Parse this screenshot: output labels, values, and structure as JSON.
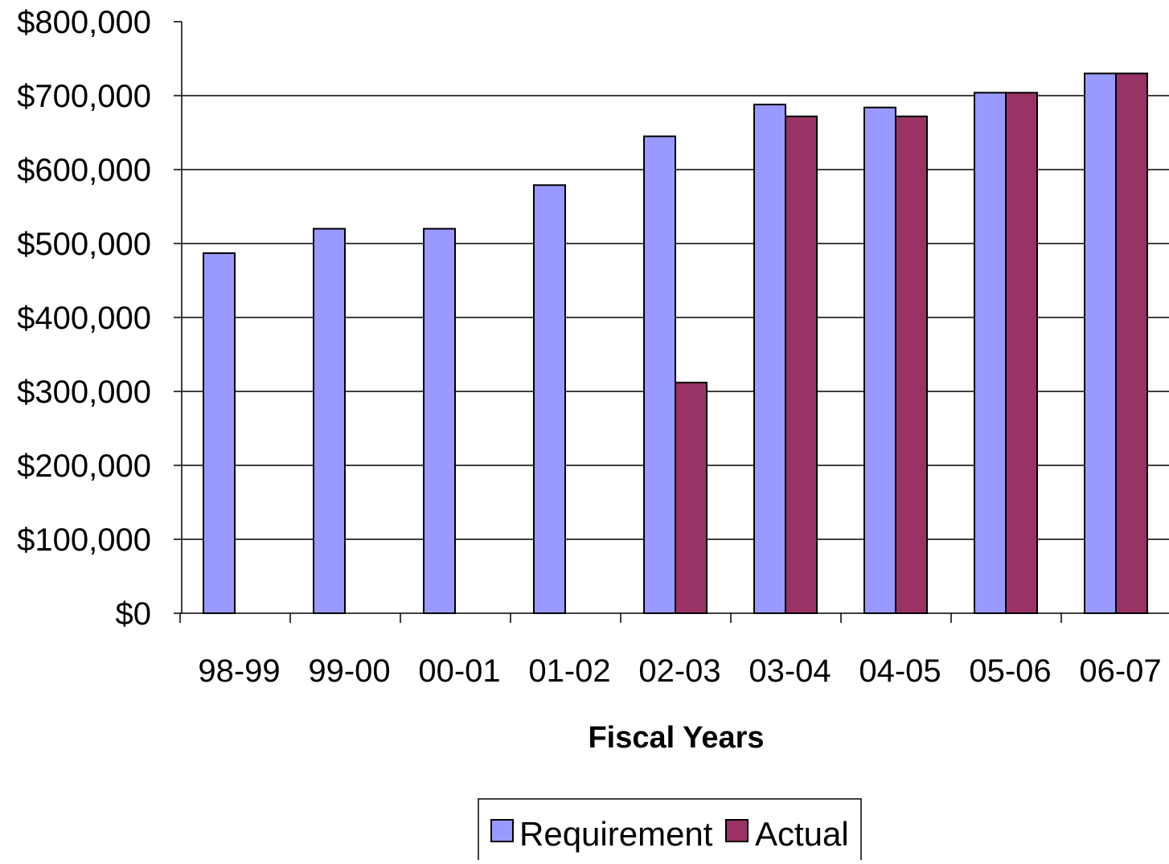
{
  "chart_data": {
    "type": "bar",
    "title": "",
    "xlabel": "Fiscal Years",
    "ylabel": "",
    "categories": [
      "98-99",
      "99-00",
      "00-01",
      "01-02",
      "02-03",
      "03-04",
      "04-05",
      "05-06",
      "06-07"
    ],
    "series": [
      {
        "name": "Requirement",
        "color": "#9999ff",
        "values": [
          487000,
          520000,
          520000,
          579000,
          645000,
          688000,
          684000,
          704000,
          730000
        ]
      },
      {
        "name": "Actual",
        "color": "#993366",
        "values": [
          null,
          null,
          null,
          null,
          312000,
          672000,
          672000,
          704000,
          730000
        ]
      }
    ],
    "ylim": [
      0,
      800000
    ],
    "yticks": [
      0,
      100000,
      200000,
      300000,
      400000,
      500000,
      600000,
      700000,
      800000
    ],
    "ytick_labels": [
      "$0",
      "$100,000",
      "$200,000",
      "$300,000",
      "$400,000",
      "$500,000",
      "$600,000",
      "$700,000",
      "$800,000"
    ],
    "grid": true,
    "legend_position": "bottom-center"
  }
}
